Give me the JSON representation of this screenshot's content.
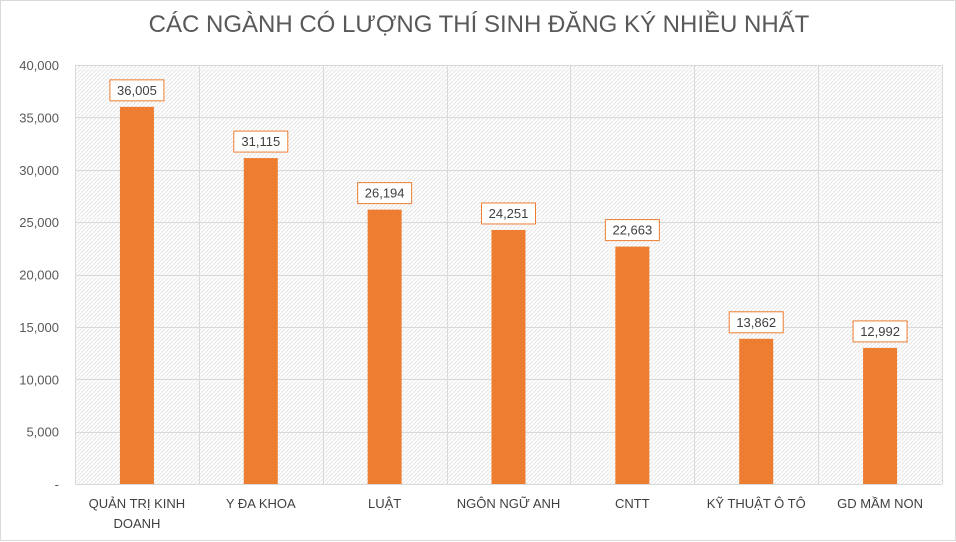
{
  "chart_data": {
    "type": "bar",
    "title": "CÁC NGÀNH CÓ LƯỢNG THÍ SINH ĐĂNG KÝ NHIỀU NHẤT",
    "categories": [
      [
        "QUẢN TRỊ KINH",
        "DOANH"
      ],
      [
        "Y ĐA KHOA"
      ],
      [
        "LUẬT"
      ],
      [
        "NGÔN NGỮ ANH"
      ],
      [
        "CNTT"
      ],
      [
        "KỸ THUẬT Ô TÔ"
      ],
      [
        "GD MẦM  NON"
      ]
    ],
    "values": [
      36005,
      31115,
      26194,
      24251,
      22663,
      13862,
      12992
    ],
    "data_labels": [
      "36,005",
      "31,115",
      "26,194",
      "24,251",
      "22,663",
      "13,862",
      "12,992"
    ],
    "ylim": [
      0,
      40000
    ],
    "yticks": [
      0,
      5000,
      10000,
      15000,
      20000,
      25000,
      30000,
      35000,
      40000
    ],
    "ytick_labels": [
      "-",
      "5,000",
      "10,000",
      "15,000",
      "20,000",
      "25,000",
      "30,000",
      "35,000",
      "40,000"
    ],
    "xlabel": "",
    "ylabel": "",
    "grid": true,
    "colors": {
      "bar": "#ed7d31",
      "label_border": "#ed7d31",
      "grid": "#d9d9d9",
      "plot_bg": "#f2f2f2"
    }
  }
}
